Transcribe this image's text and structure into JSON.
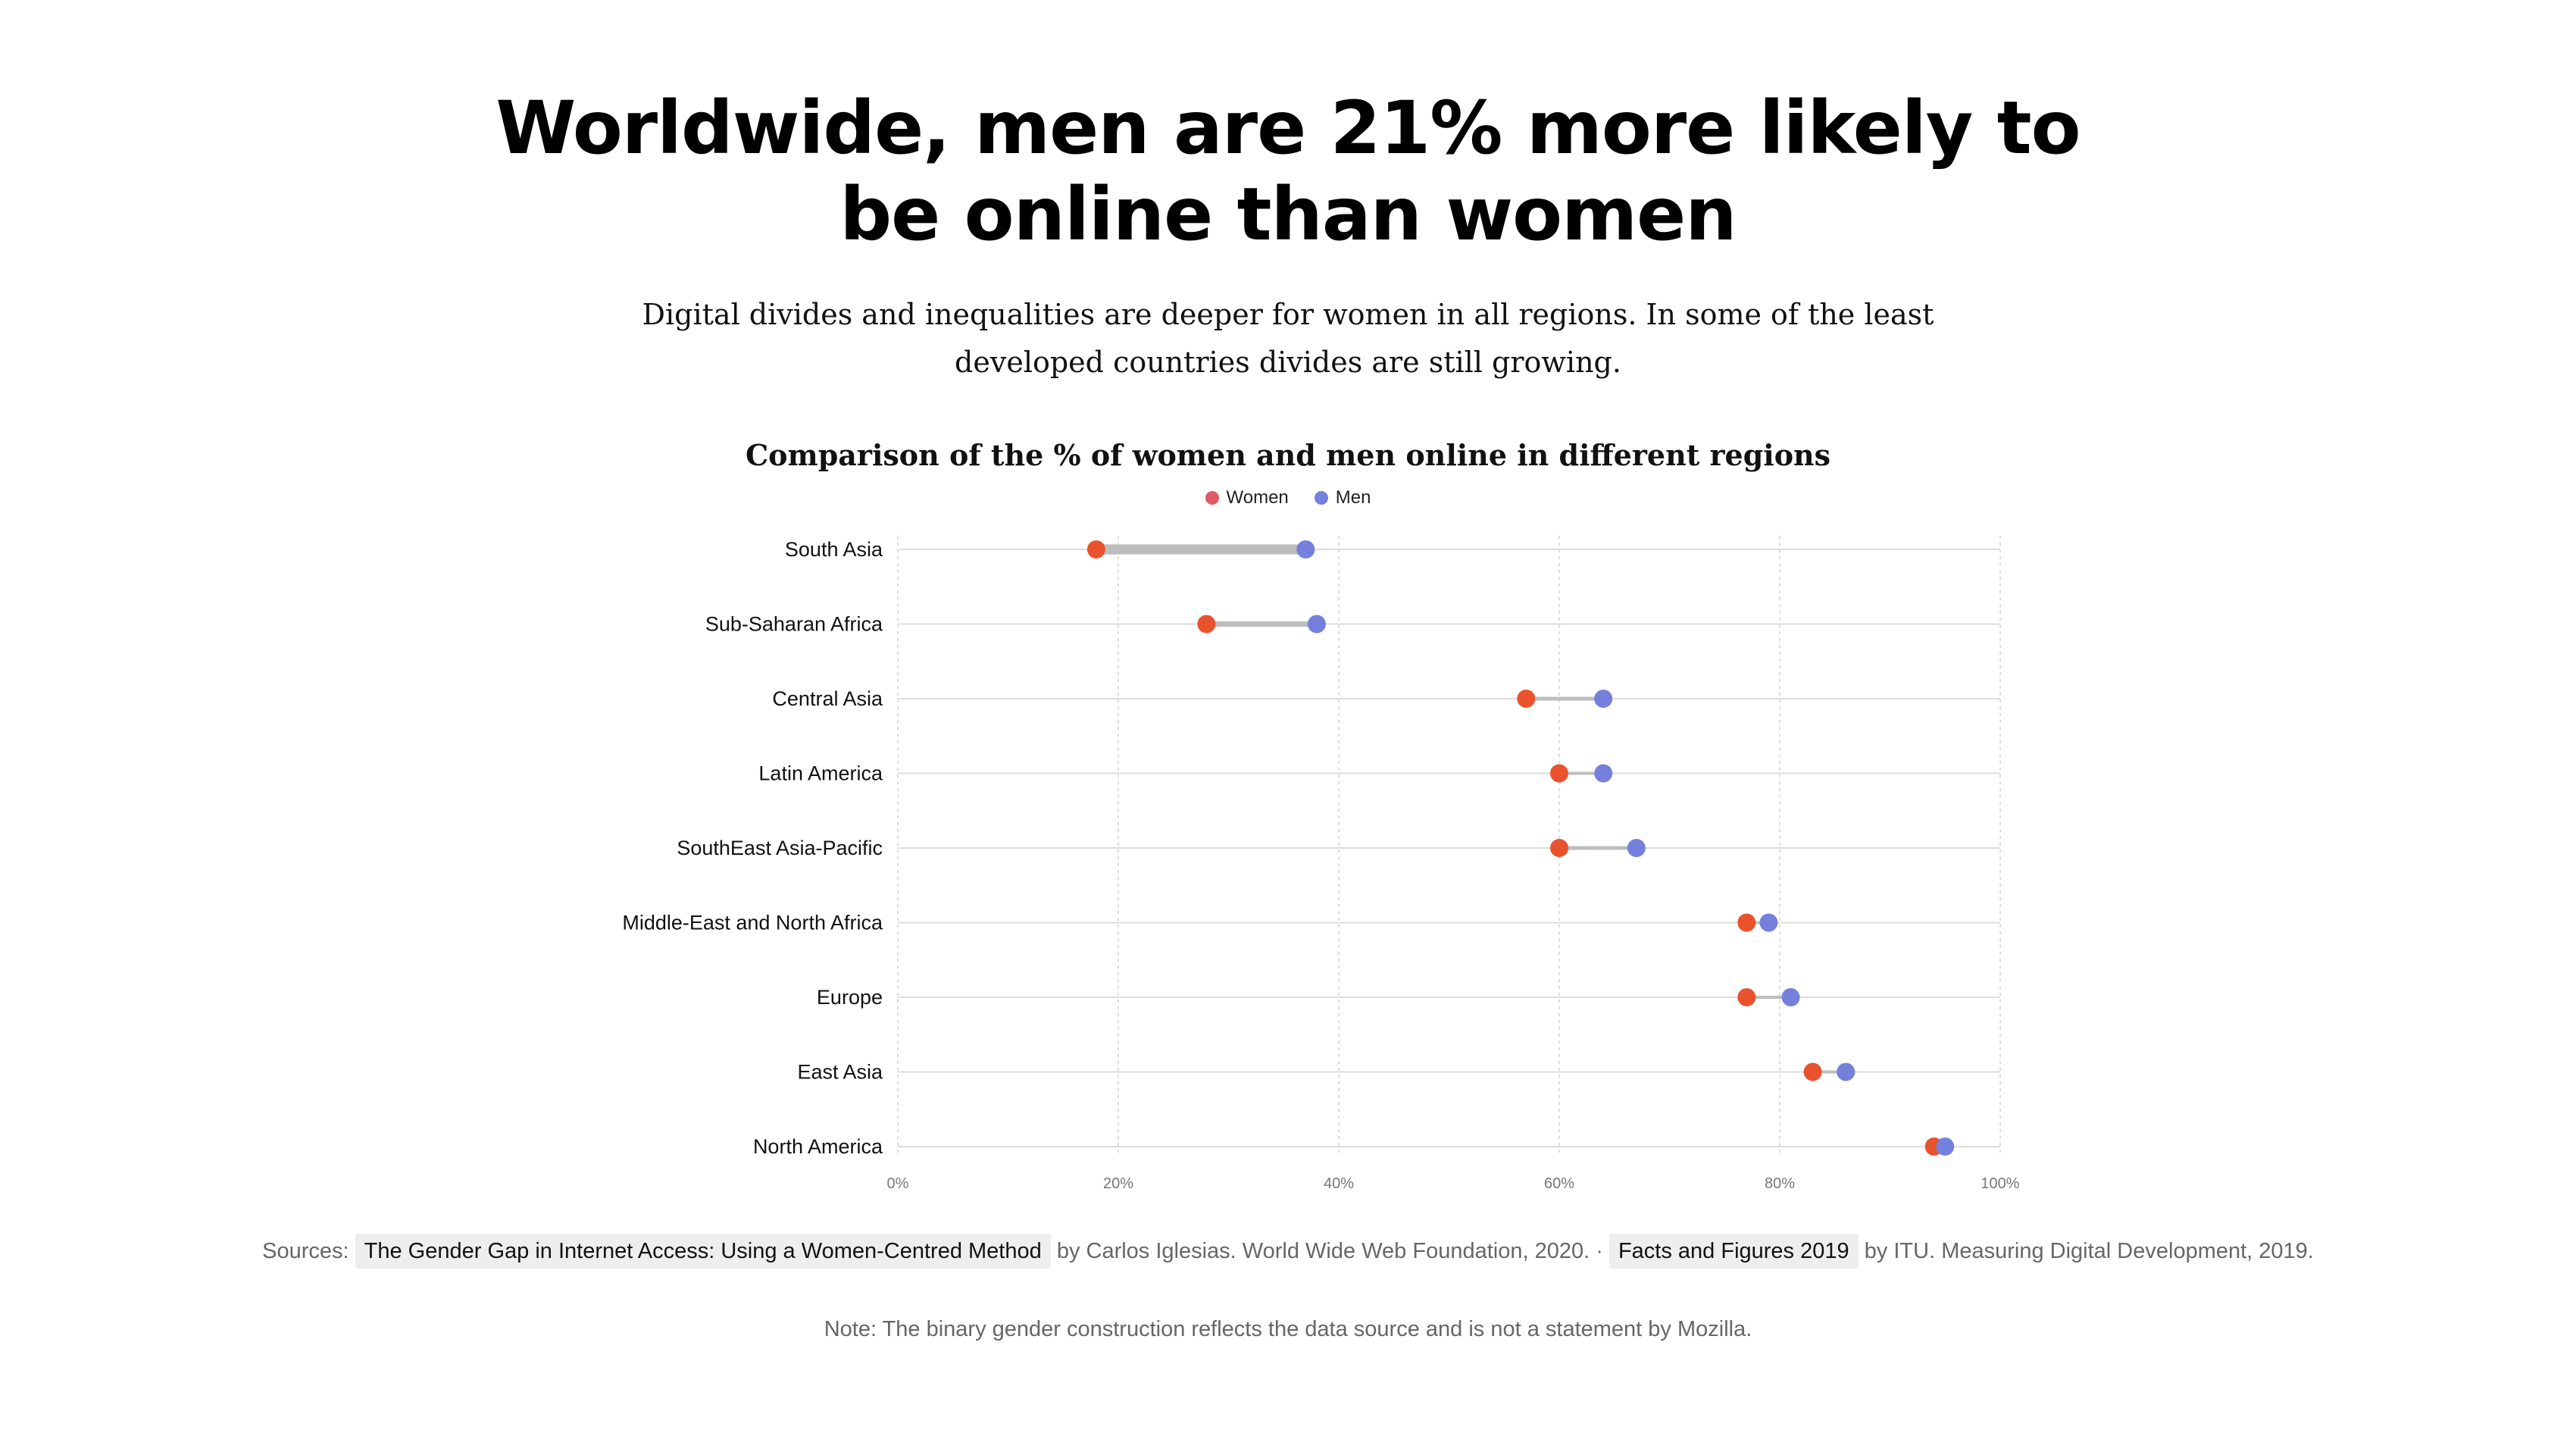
{
  "headline": {
    "line1": "Worldwide, men are 21% more likely to",
    "line2": "be online than women"
  },
  "subtitle": {
    "line1": "Digital divides and inequalities are deeper for women in all regions. In some of the least",
    "line2": "developed countries divides are still growing."
  },
  "legend": {
    "women_label": "Women",
    "men_label": "Men"
  },
  "colors": {
    "women": "#e8532e",
    "men": "#7480db",
    "legend_women": "#e05a66",
    "connector": "#bdbdbd",
    "gridline": "#dddddd"
  },
  "chart_data": {
    "type": "dumbbell",
    "title": "Comparison of the % of women and men online in different regions",
    "xlabel": "",
    "ylabel": "",
    "xlim": [
      0,
      100
    ],
    "xticks": [
      "0%",
      "20%",
      "40%",
      "60%",
      "80%",
      "100%"
    ],
    "categories": [
      "South Asia",
      "Sub-Saharan Africa",
      "Central Asia",
      "Latin America",
      "SouthEast Asia-Pacific",
      "Middle-East and North Africa",
      "Europe",
      "East Asia",
      "North America"
    ],
    "series": [
      {
        "name": "Women",
        "values": [
          18,
          28,
          57,
          60,
          60,
          77,
          77,
          83,
          94
        ]
      },
      {
        "name": "Men",
        "values": [
          37,
          38,
          64,
          64,
          67,
          79,
          81,
          86,
          95
        ]
      }
    ],
    "legend_position": "top-center",
    "grid": true
  },
  "sources": {
    "prefix": "Sources:",
    "source1_title": "The Gender Gap in Internet Access: Using a Women-Centred Method",
    "source1_desc": "by Carlos Iglesias. World Wide Web Foundation, 2020.",
    "separator": "·",
    "source2_title": "Facts and Figures 2019",
    "source2_desc": "by ITU. Measuring Digital Development, 2019."
  },
  "note": "Note: The binary gender construction reflects the data source and is not a statement by Mozilla."
}
